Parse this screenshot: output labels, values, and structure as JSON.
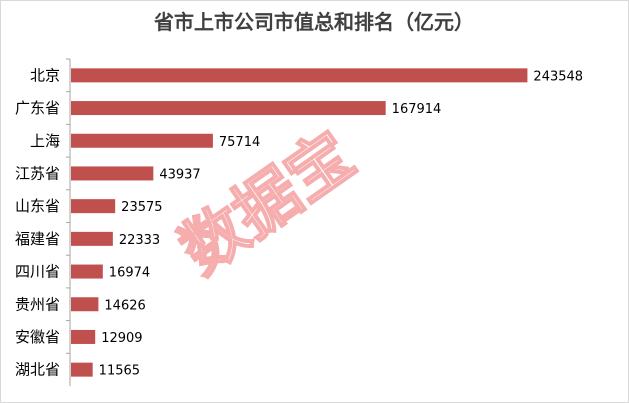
{
  "colors": {
    "bar": "#c0504d",
    "axis": "#a6a6a6",
    "watermark": "#ef6b6b"
  },
  "watermark_text": "数据宝",
  "chart_data": {
    "type": "bar",
    "orientation": "horizontal",
    "title": "省市上市公司市值总和排名（亿元）",
    "categories": [
      "北京",
      "广东省",
      "上海",
      "江苏省",
      "山东省",
      "福建省",
      "四川省",
      "贵州省",
      "安徽省",
      "湖北省"
    ],
    "values": [
      243548,
      167914,
      75714,
      43937,
      23575,
      22333,
      16974,
      14626,
      12909,
      11565
    ],
    "value_labels": [
      "243548",
      "167914",
      "75714",
      "43937",
      "23575",
      "22333",
      "16974",
      "14626",
      "12909",
      "11565"
    ],
    "xlabel": "",
    "ylabel": "",
    "xlim": [
      0,
      270000
    ],
    "grid": false,
    "legend": "none"
  }
}
